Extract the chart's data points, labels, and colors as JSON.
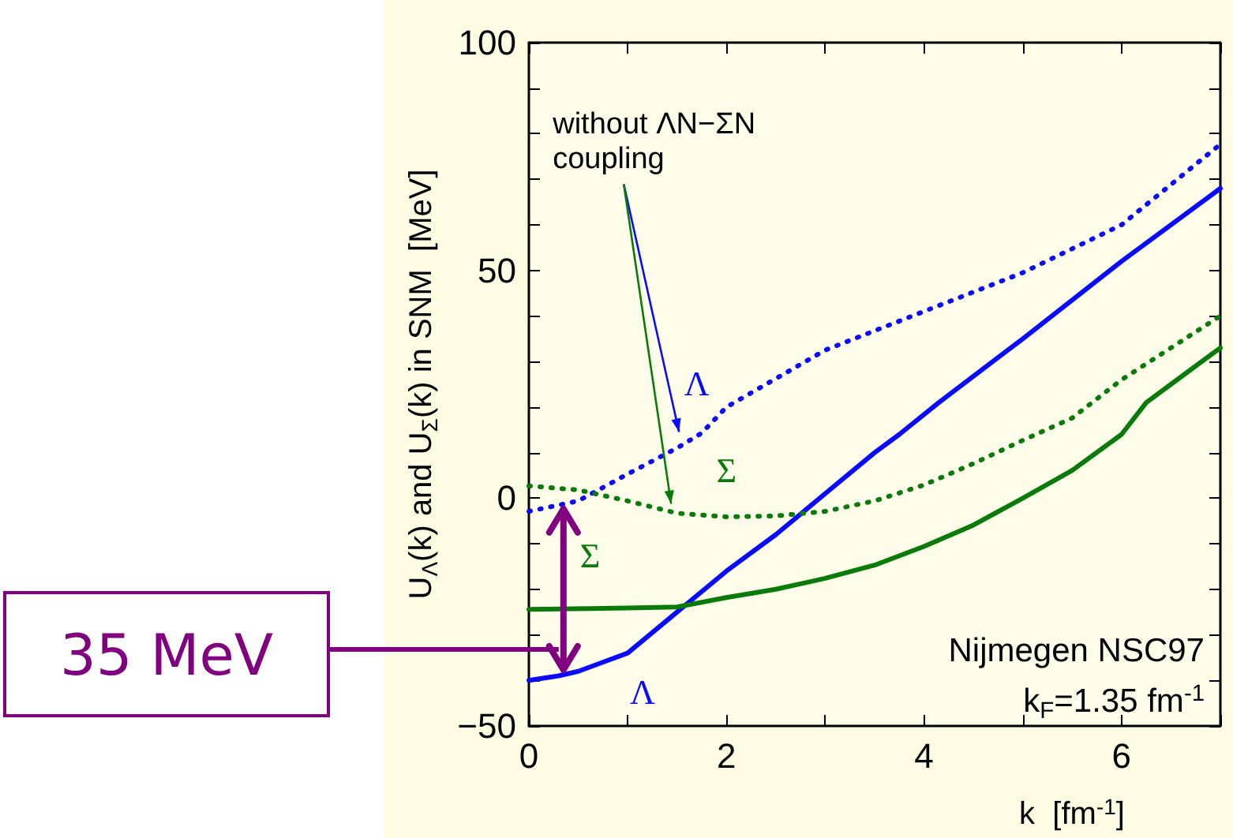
{
  "chart_data": {
    "type": "line",
    "xlabel": "k  [fm$^{-1}$]",
    "ylabel": "U$_{Λ}$(k) and U$_{Σ}$(k) in SNM  [MeV]",
    "xlim": [
      0,
      7
    ],
    "ylim": [
      -50,
      100
    ],
    "xticks": [
      0,
      {
        "value": 1,
        "label": null
      },
      2,
      {
        "value": 3,
        "label": null
      },
      4,
      {
        "value": 5,
        "label": null
      },
      6,
      {
        "value": 7,
        "label": null
      }
    ],
    "yticks": [
      -50,
      {
        "value": -40,
        "label": null
      },
      {
        "value": -30,
        "label": null
      },
      {
        "value": -20,
        "label": null
      },
      {
        "value": -10,
        "label": null
      },
      0,
      {
        "value": 10,
        "label": null
      },
      {
        "value": 20,
        "label": null
      },
      {
        "value": 30,
        "label": null
      },
      {
        "value": 40,
        "label": null
      },
      50,
      {
        "value": 60,
        "label": null
      },
      {
        "value": 70,
        "label": null
      },
      {
        "value": 80,
        "label": null
      },
      {
        "value": 90,
        "label": null
      },
      100
    ],
    "marker": "none",
    "series": [
      {
        "name": "Λ",
        "color": "#0a0aff",
        "line_style": "dotted",
        "x": [
          0,
          0.5,
          1,
          1.5,
          1.75,
          2,
          3,
          4,
          5,
          6,
          7
        ],
        "values": [
          -2.9,
          -0.6,
          5.3,
          11,
          14.3,
          20,
          32.5,
          41,
          49.5,
          60,
          77.7
        ]
      },
      {
        "name": "Λ",
        "color": "#0a0aff",
        "line_style": "solid",
        "x": [
          0,
          0.3,
          0.5,
          1,
          1.5,
          2,
          2.5,
          3,
          3.5,
          3.75,
          4.15,
          5,
          6,
          7
        ],
        "values": [
          -40,
          -39,
          -38,
          -34,
          -25,
          -16,
          -8,
          1,
          10,
          14,
          21,
          35,
          52,
          68
        ]
      },
      {
        "name": "Σ",
        "color": "#0a7a0a",
        "line_style": "dotted",
        "x": [
          0,
          0.5,
          1,
          1.5,
          2,
          2.5,
          3,
          3.5,
          4,
          4.5,
          5,
          5.5,
          6,
          6.5,
          7
        ],
        "values": [
          2.7,
          1.8,
          -0.6,
          -3.3,
          -4.1,
          -3.9,
          -2.9,
          -0.6,
          2.9,
          7.6,
          12.7,
          17.6,
          26,
          33,
          40
        ]
      },
      {
        "name": "Σ",
        "color": "#0a7a0a",
        "line_style": "solid",
        "x": [
          0,
          1,
          1.5,
          2,
          2.5,
          3,
          3.5,
          4,
          4.5,
          5,
          5.5,
          6,
          6.25,
          6.5,
          7
        ],
        "values": [
          -24.4,
          -24.1,
          -23.9,
          -21.8,
          -20,
          -17.6,
          -14.7,
          -10.6,
          -5.9,
          0,
          6.1,
          14,
          21,
          25,
          33
        ]
      }
    ],
    "annotations": [
      {
        "text": "without ΛN−ΣN\ncoupling",
        "x": 1.52,
        "y": 12.8
      },
      "35 MeV",
      "Nijmegen NSC97",
      "k$_{F}$=1.35 fm$^{-1}$"
    ]
  }
}
